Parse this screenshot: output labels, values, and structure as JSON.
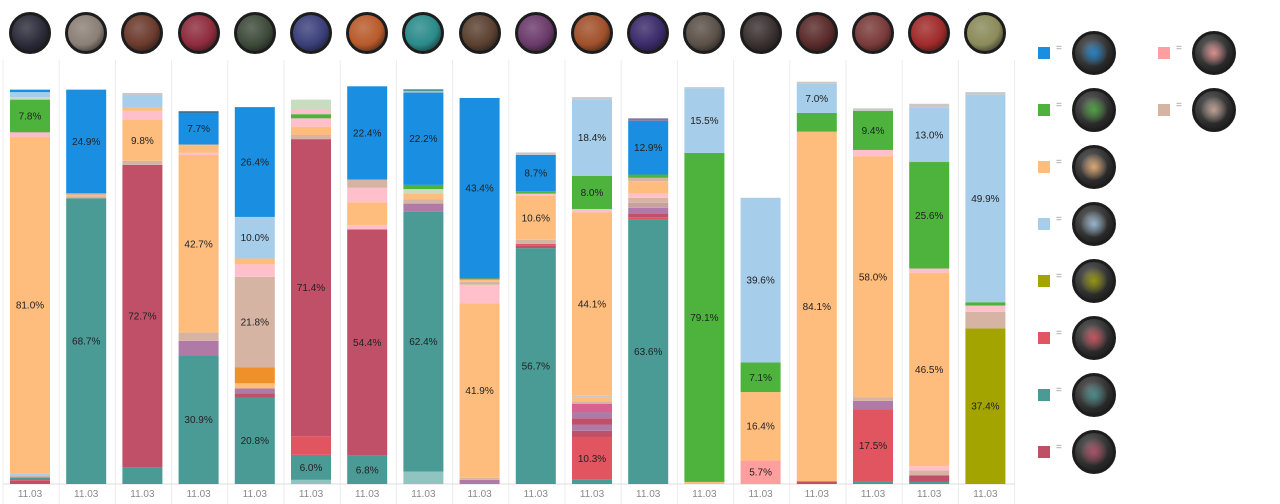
{
  "chart_data": {
    "type": "bar",
    "stacked": true,
    "categories": [
      "11.03",
      "11.03",
      "11.03",
      "11.03",
      "11.03",
      "11.03",
      "11.03",
      "11.03",
      "11.03",
      "11.03",
      "11.03",
      "11.03",
      "11.03",
      "11.03",
      "11.03",
      "11.03",
      "11.03",
      "11.03"
    ],
    "champions": [
      {
        "icon": "champion-portrait-1-icon",
        "color": "#2b2b3a"
      },
      {
        "icon": "champion-portrait-2-icon",
        "color": "#8a7f76"
      },
      {
        "icon": "champion-portrait-3-icon",
        "color": "#6b3a2c"
      },
      {
        "icon": "champion-portrait-4-icon",
        "color": "#8e2b3c"
      },
      {
        "icon": "champion-portrait-5-icon",
        "color": "#3d4a3a"
      },
      {
        "icon": "champion-portrait-6-icon",
        "color": "#3a3f7a"
      },
      {
        "icon": "champion-portrait-7-icon",
        "color": "#b85a2a"
      },
      {
        "icon": "champion-portrait-8-icon",
        "color": "#2a8a8a"
      },
      {
        "icon": "champion-portrait-9-icon",
        "color": "#5a4030"
      },
      {
        "icon": "champion-portrait-10-icon",
        "color": "#6a3a6a"
      },
      {
        "icon": "champion-portrait-11-icon",
        "color": "#a0502a"
      },
      {
        "icon": "champion-portrait-12-icon",
        "color": "#3a2a6a"
      },
      {
        "icon": "champion-portrait-13-icon",
        "color": "#5a5048"
      },
      {
        "icon": "champion-portrait-14-icon",
        "color": "#3a3030"
      },
      {
        "icon": "champion-portrait-15-icon",
        "color": "#5a2a2a"
      },
      {
        "icon": "champion-portrait-16-icon",
        "color": "#7a3a3a"
      },
      {
        "icon": "champion-portrait-17-icon",
        "color": "#a02a2a"
      },
      {
        "icon": "champion-portrait-18-icon",
        "color": "#8a8a5a"
      }
    ],
    "legend": [
      {
        "color": "#1a8ee0",
        "icon": "item-icon-blue"
      },
      {
        "color": "#ff9e9e",
        "icon": "item-icon-pink"
      },
      {
        "color": "#4db33d",
        "icon": "item-icon-green"
      },
      {
        "color": "#d6b4a4",
        "icon": "item-icon-tan"
      },
      {
        "color": "#ffbd7d",
        "icon": "item-icon-orange"
      },
      {
        "color": "#a6cde9",
        "icon": "item-icon-lightblue"
      },
      {
        "color": "#a4a400",
        "icon": "item-icon-olive"
      },
      {
        "color": "#e05560",
        "icon": "item-icon-red"
      },
      {
        "color": "#4a9a96",
        "icon": "item-icon-teal"
      },
      {
        "color": "#c05068",
        "icon": "item-icon-crimson"
      }
    ],
    "ylim": [
      0,
      100
    ],
    "grid": false,
    "legend_placement": "right",
    "bars": [
      {
        "segments": [
          {
            "color": "#c05068",
            "value": 0.8
          },
          {
            "color": "#e05560",
            "value": 0.4
          },
          {
            "color": "#4a9a96",
            "value": 0.4
          },
          {
            "color": "#d6b4a4",
            "value": 0.5
          },
          {
            "color": "#a6cde9",
            "value": 0.4
          },
          {
            "color": "#ffbd7d",
            "value": 81.0,
            "label": "81.0%"
          },
          {
            "color": "#f8bbd0",
            "value": 0.8
          },
          {
            "color": "#d6b4a4",
            "value": 0.3
          },
          {
            "color": "#4db33d",
            "value": 7.8,
            "label": "7.8%"
          },
          {
            "color": "#c8dcc0",
            "value": 0.6
          },
          {
            "color": "#a6cde9",
            "value": 1.2
          },
          {
            "color": "#1a8ee0",
            "value": 0.6
          }
        ]
      },
      {
        "segments": [
          {
            "color": "#4a9a96",
            "value": 68.7,
            "label": "68.7%"
          },
          {
            "color": "#d6b4a4",
            "value": 0.4
          },
          {
            "color": "#ffbd7d",
            "value": 0.5
          },
          {
            "color": "#c5a0a0",
            "value": 0.3
          },
          {
            "color": "#1a8ee0",
            "value": 24.9,
            "label": "24.9%"
          }
        ]
      },
      {
        "segments": [
          {
            "color": "#4a9a96",
            "value": 4.0
          },
          {
            "color": "#c05068",
            "value": 72.7,
            "label": "72.7%"
          },
          {
            "color": "#d6b4a4",
            "value": 1.0
          },
          {
            "color": "#ffbd7d",
            "value": 9.8,
            "label": "9.8%"
          },
          {
            "color": "#ffc0cb",
            "value": 2.2
          },
          {
            "color": "#ffbd7d",
            "value": 0.8
          },
          {
            "color": "#a6cde9",
            "value": 3.0
          },
          {
            "color": "#c8c8c8",
            "value": 0.5
          }
        ]
      },
      {
        "segments": [
          {
            "color": "#4a9a96",
            "value": 30.9,
            "label": "30.9%"
          },
          {
            "color": "#b07aa6",
            "value": 3.5
          },
          {
            "color": "#d6b4a4",
            "value": 2.0
          },
          {
            "color": "#ffbd7d",
            "value": 42.7,
            "label": "42.7%"
          },
          {
            "color": "#ffc0cb",
            "value": 0.5
          },
          {
            "color": "#ffbd7d",
            "value": 2.0
          },
          {
            "color": "#1a8ee0",
            "value": 7.7,
            "label": "7.7%"
          },
          {
            "color": "#555555",
            "value": 0.3
          }
        ]
      },
      {
        "segments": [
          {
            "color": "#4a9a96",
            "value": 20.8,
            "label": "20.8%"
          },
          {
            "color": "#c05068",
            "value": 1.0
          },
          {
            "color": "#b07aa6",
            "value": 1.2
          },
          {
            "color": "#ffbd7d",
            "value": 1.2
          },
          {
            "color": "#f0902a",
            "value": 3.8
          },
          {
            "color": "#d6b4a4",
            "value": 21.8,
            "label": "21.8%"
          },
          {
            "color": "#ffc0cb",
            "value": 3.0
          },
          {
            "color": "#ffbd7d",
            "value": 1.4
          },
          {
            "color": "#a6cde9",
            "value": 10.0,
            "label": "10.0%"
          },
          {
            "color": "#1a8ee0",
            "value": 26.4,
            "label": "26.4%"
          }
        ]
      },
      {
        "segments": [
          {
            "color": "#8fc4c0",
            "value": 1.0
          },
          {
            "color": "#4a9a96",
            "value": 6.0,
            "label": "6.0%"
          },
          {
            "color": "#e05560",
            "value": 4.5
          },
          {
            "color": "#c05068",
            "value": 71.4,
            "label": "71.4%"
          },
          {
            "color": "#d6b4a4",
            "value": 1.0
          },
          {
            "color": "#ffbd7d",
            "value": 2.0
          },
          {
            "color": "#ffc0cb",
            "value": 2.0
          },
          {
            "color": "#4db33d",
            "value": 1.0
          },
          {
            "color": "#ffc0cb",
            "value": 1.0
          },
          {
            "color": "#c8dcc0",
            "value": 2.5
          }
        ]
      },
      {
        "segments": [
          {
            "color": "#4a9a96",
            "value": 6.8,
            "label": "6.8%"
          },
          {
            "color": "#c05068",
            "value": 54.4,
            "label": "54.4%"
          },
          {
            "color": "#ffc0cb",
            "value": 1.0
          },
          {
            "color": "#ffbd7d",
            "value": 1.5
          },
          {
            "color": "#ffbd7d",
            "value": 4.0
          },
          {
            "color": "#ffc0cb",
            "value": 3.5
          },
          {
            "color": "#d6b4a4",
            "value": 2.0
          },
          {
            "color": "#1a8ee0",
            "value": 22.4,
            "label": "22.4%"
          }
        ]
      },
      {
        "segments": [
          {
            "color": "#8fc4c0",
            "value": 3.0
          },
          {
            "color": "#4a9a96",
            "value": 62.4,
            "label": "62.4%"
          },
          {
            "color": "#b07aa6",
            "value": 2.0
          },
          {
            "color": "#d6b4a4",
            "value": 1.0
          },
          {
            "color": "#ffbd7d",
            "value": 1.5
          },
          {
            "color": "#c8dcc0",
            "value": 1.0
          },
          {
            "color": "#4db33d",
            "value": 1.0
          },
          {
            "color": "#1a8ee0",
            "value": 22.2,
            "label": "22.2%"
          },
          {
            "color": "#c8c8c8",
            "value": 0.3
          },
          {
            "color": "#4a9a96",
            "value": 0.5
          }
        ]
      },
      {
        "segments": [
          {
            "color": "#b07aa6",
            "value": 1.0
          },
          {
            "color": "#d6b4a4",
            "value": 0.5
          },
          {
            "color": "#ffbd7d",
            "value": 41.9,
            "label": "41.9%"
          },
          {
            "color": "#ffc0cb",
            "value": 4.5
          },
          {
            "color": "#d6b4a4",
            "value": 0.7
          },
          {
            "color": "#ffbd7d",
            "value": 0.5
          },
          {
            "color": "#c5a000",
            "value": 0.3
          },
          {
            "color": "#1a8ee0",
            "value": 43.4,
            "label": "43.4%"
          }
        ]
      },
      {
        "segments": [
          {
            "color": "#4a9a96",
            "value": 56.7,
            "label": "56.7%"
          },
          {
            "color": "#c05068",
            "value": 0.6
          },
          {
            "color": "#e05560",
            "value": 0.4
          },
          {
            "color": "#d6b4a4",
            "value": 1.0
          },
          {
            "color": "#ffbd7d",
            "value": 10.6,
            "label": "10.6%"
          },
          {
            "color": "#ffc0cb",
            "value": 0.5
          },
          {
            "color": "#4db33d",
            "value": 0.6
          },
          {
            "color": "#1a8ee0",
            "value": 8.7,
            "label": "8.7%"
          },
          {
            "color": "#c8c8c8",
            "value": 0.6
          }
        ]
      },
      {
        "segments": [
          {
            "color": "#4a9a96",
            "value": 1.0
          },
          {
            "color": "#e05560",
            "value": 10.3,
            "label": "10.3%"
          },
          {
            "color": "#c05068",
            "value": 1.5
          },
          {
            "color": "#b07aa6",
            "value": 1.5
          },
          {
            "color": "#c05068",
            "value": 1.5
          },
          {
            "color": "#b07aa6",
            "value": 1.5
          },
          {
            "color": "#d96090",
            "value": 2.0
          },
          {
            "color": "#d6b4a4",
            "value": 0.6
          },
          {
            "color": "#ffbd7d",
            "value": 0.8
          },
          {
            "color": "#c8c8c8",
            "value": 0.5
          },
          {
            "color": "#ffbd7d",
            "value": 44.1,
            "label": "44.1%"
          },
          {
            "color": "#ffc0cb",
            "value": 0.8
          },
          {
            "color": "#4db33d",
            "value": 8.0,
            "label": "8.0%"
          },
          {
            "color": "#a6cde9",
            "value": 18.4,
            "label": "18.4%"
          },
          {
            "color": "#c8c8c8",
            "value": 0.5
          }
        ]
      },
      {
        "segments": [
          {
            "color": "#4a9a96",
            "value": 63.6,
            "label": "63.6%"
          },
          {
            "color": "#e05560",
            "value": 0.5
          },
          {
            "color": "#c05068",
            "value": 0.8
          },
          {
            "color": "#b07aa6",
            "value": 1.5
          },
          {
            "color": "#c8a0a0",
            "value": 1.2
          },
          {
            "color": "#d6b4a4",
            "value": 1.2
          },
          {
            "color": "#ffc0cb",
            "value": 1.0
          },
          {
            "color": "#ffbd7d",
            "value": 3.0
          },
          {
            "color": "#d6b4a4",
            "value": 0.8
          },
          {
            "color": "#4db33d",
            "value": 0.8
          },
          {
            "color": "#1a8ee0",
            "value": 12.9,
            "label": "12.9%"
          },
          {
            "color": "#7a7aa0",
            "value": 0.6
          }
        ]
      },
      {
        "segments": [
          {
            "color": "#ffbd7d",
            "value": 0.5
          },
          {
            "color": "#4db33d",
            "value": 79.1,
            "label": "79.1%"
          },
          {
            "color": "#a6cde9",
            "value": 15.5,
            "label": "15.5%"
          },
          {
            "color": "#c8c8c8",
            "value": 0.3
          }
        ]
      },
      {
        "segments": [
          {
            "color": "#ff9e9e",
            "value": 5.7,
            "label": "5.7%"
          },
          {
            "color": "#ffbd7d",
            "value": 16.4,
            "label": "16.4%"
          },
          {
            "color": "#4db33d",
            "value": 7.1,
            "label": "7.1%"
          },
          {
            "color": "#a6cde9",
            "value": 39.6,
            "label": "39.6%"
          }
        ]
      },
      {
        "segments": [
          {
            "color": "#c05068",
            "value": 0.6
          },
          {
            "color": "#ffbd7d",
            "value": 84.1,
            "label": "84.1%"
          },
          {
            "color": "#4db33d",
            "value": 4.5
          },
          {
            "color": "#a6cde9",
            "value": 7.0,
            "label": "7.0%"
          },
          {
            "color": "#c8c8c8",
            "value": 0.5
          }
        ]
      },
      {
        "segments": [
          {
            "color": "#4a9a96",
            "value": 0.5
          },
          {
            "color": "#e05560",
            "value": 17.5,
            "label": "17.5%"
          },
          {
            "color": "#b07aa6",
            "value": 2.0
          },
          {
            "color": "#d6b4a4",
            "value": 0.8
          },
          {
            "color": "#ffbd7d",
            "value": 58.0,
            "label": "58.0%"
          },
          {
            "color": "#ffc0cb",
            "value": 1.5
          },
          {
            "color": "#4db33d",
            "value": 9.4,
            "label": "9.4%"
          },
          {
            "color": "#c8c8c8",
            "value": 0.6
          }
        ]
      },
      {
        "segments": [
          {
            "color": "#4a9a96",
            "value": 0.6
          },
          {
            "color": "#c05068",
            "value": 1.5
          },
          {
            "color": "#d6b4a4",
            "value": 1.2
          },
          {
            "color": "#ffc0cb",
            "value": 1.0
          },
          {
            "color": "#ffbd7d",
            "value": 46.5,
            "label": "46.5%"
          },
          {
            "color": "#ffc0cb",
            "value": 1.0
          },
          {
            "color": "#4db33d",
            "value": 25.6,
            "label": "25.6%"
          },
          {
            "color": "#a6cde9",
            "value": 13.0,
            "label": "13.0%"
          },
          {
            "color": "#c8c8c8",
            "value": 1.0
          }
        ]
      },
      {
        "segments": [
          {
            "color": "#a4a400",
            "value": 37.4,
            "label": "37.4%"
          },
          {
            "color": "#d6b4a4",
            "value": 4.0
          },
          {
            "color": "#ffc0cb",
            "value": 1.5
          },
          {
            "color": "#4db33d",
            "value": 0.8
          },
          {
            "color": "#a6cde9",
            "value": 49.9,
            "label": "49.9%"
          },
          {
            "color": "#c8c8c8",
            "value": 0.6
          }
        ]
      }
    ]
  }
}
